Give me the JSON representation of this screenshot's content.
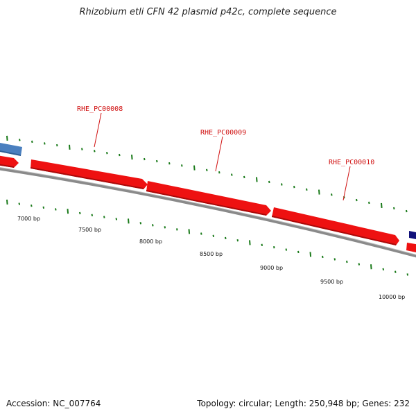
{
  "title": "Rhizobium etli CFN 42 plasmid p42c, complete sequence",
  "footer": {
    "accession": "Accession: NC_007764",
    "summary": "Topology: circular; Length: 250,948 bp; Genes: 232"
  },
  "genes": [
    {
      "label": "RHE_PC00008"
    },
    {
      "label": "RHE_PC00009"
    },
    {
      "label": "RHE_PC00010"
    }
  ],
  "scale": {
    "ticks": [
      "7000 bp",
      "7500 bp",
      "8000 bp",
      "8500 bp",
      "9000 bp",
      "9500 bp",
      "10000 bp"
    ]
  },
  "colors": {
    "gene_forward": "#ee1111",
    "gene_forward_shadow": "#a80a0a",
    "gene_other": "#4a7fbf",
    "gene_dark": "#10107a",
    "backbone": "#888888",
    "tick": "#1a7a1a",
    "label": "#d01010"
  }
}
